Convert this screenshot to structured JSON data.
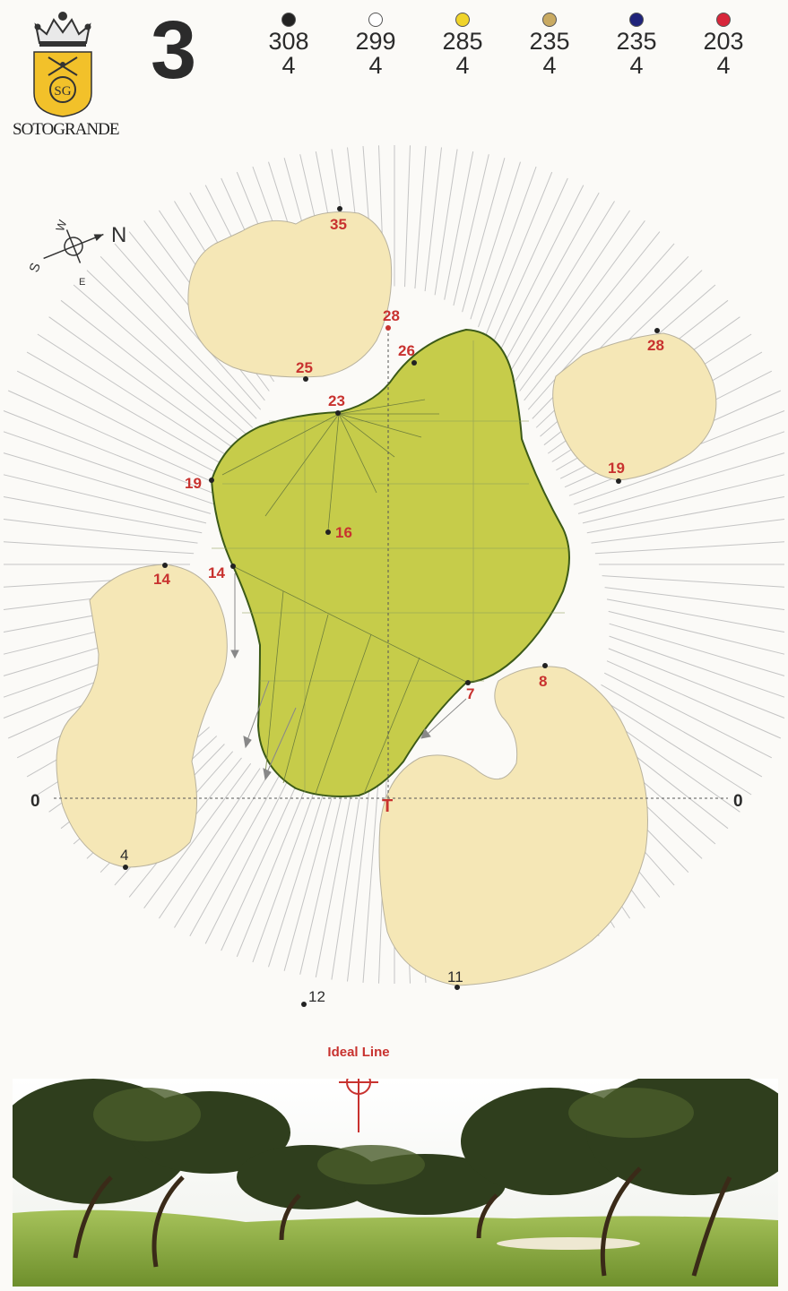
{
  "hole": {
    "number": "3"
  },
  "club": {
    "logo_initials": "SG",
    "name": "SOTOGRANDE"
  },
  "tees": [
    {
      "yards": "308",
      "par": "4",
      "color": "#222222"
    },
    {
      "yards": "299",
      "par": "4",
      "color": "#ffffff"
    },
    {
      "yards": "285",
      "par": "4",
      "color": "#f0d42a"
    },
    {
      "yards": "235",
      "par": "4",
      "color": "#c9aa62"
    },
    {
      "yards": "235",
      "par": "4",
      "color": "#1f237a"
    },
    {
      "yards": "203",
      "par": "4",
      "color": "#d8263a"
    }
  ],
  "compass": {
    "n": "N",
    "s": "S",
    "e": "E",
    "w": "W"
  },
  "axis": {
    "left_zero": "0",
    "right_zero": "0",
    "tee_marker": "T",
    "center_label": "28"
  },
  "green_points": [
    "26",
    "23",
    "19",
    "16",
    "14",
    "7"
  ],
  "bunker_labels": {
    "top": "35",
    "top_bottom": "25",
    "right_top": "28",
    "right_bottom": "19",
    "left_top": "14",
    "left_bottom": "4",
    "lower_right_top": "8",
    "lower_right_bottom": "11",
    "front": "12"
  },
  "ideal_line": {
    "label": "Ideal Line"
  },
  "colors": {
    "green": "#c6cc4a",
    "green_edge": "#3c5a18",
    "sand": "#f5e7b6",
    "sand_edge": "#b8b29e",
    "red": "#c8322f",
    "text_dark": "#2b2b2b",
    "rough_line": "#bdbdbd"
  }
}
